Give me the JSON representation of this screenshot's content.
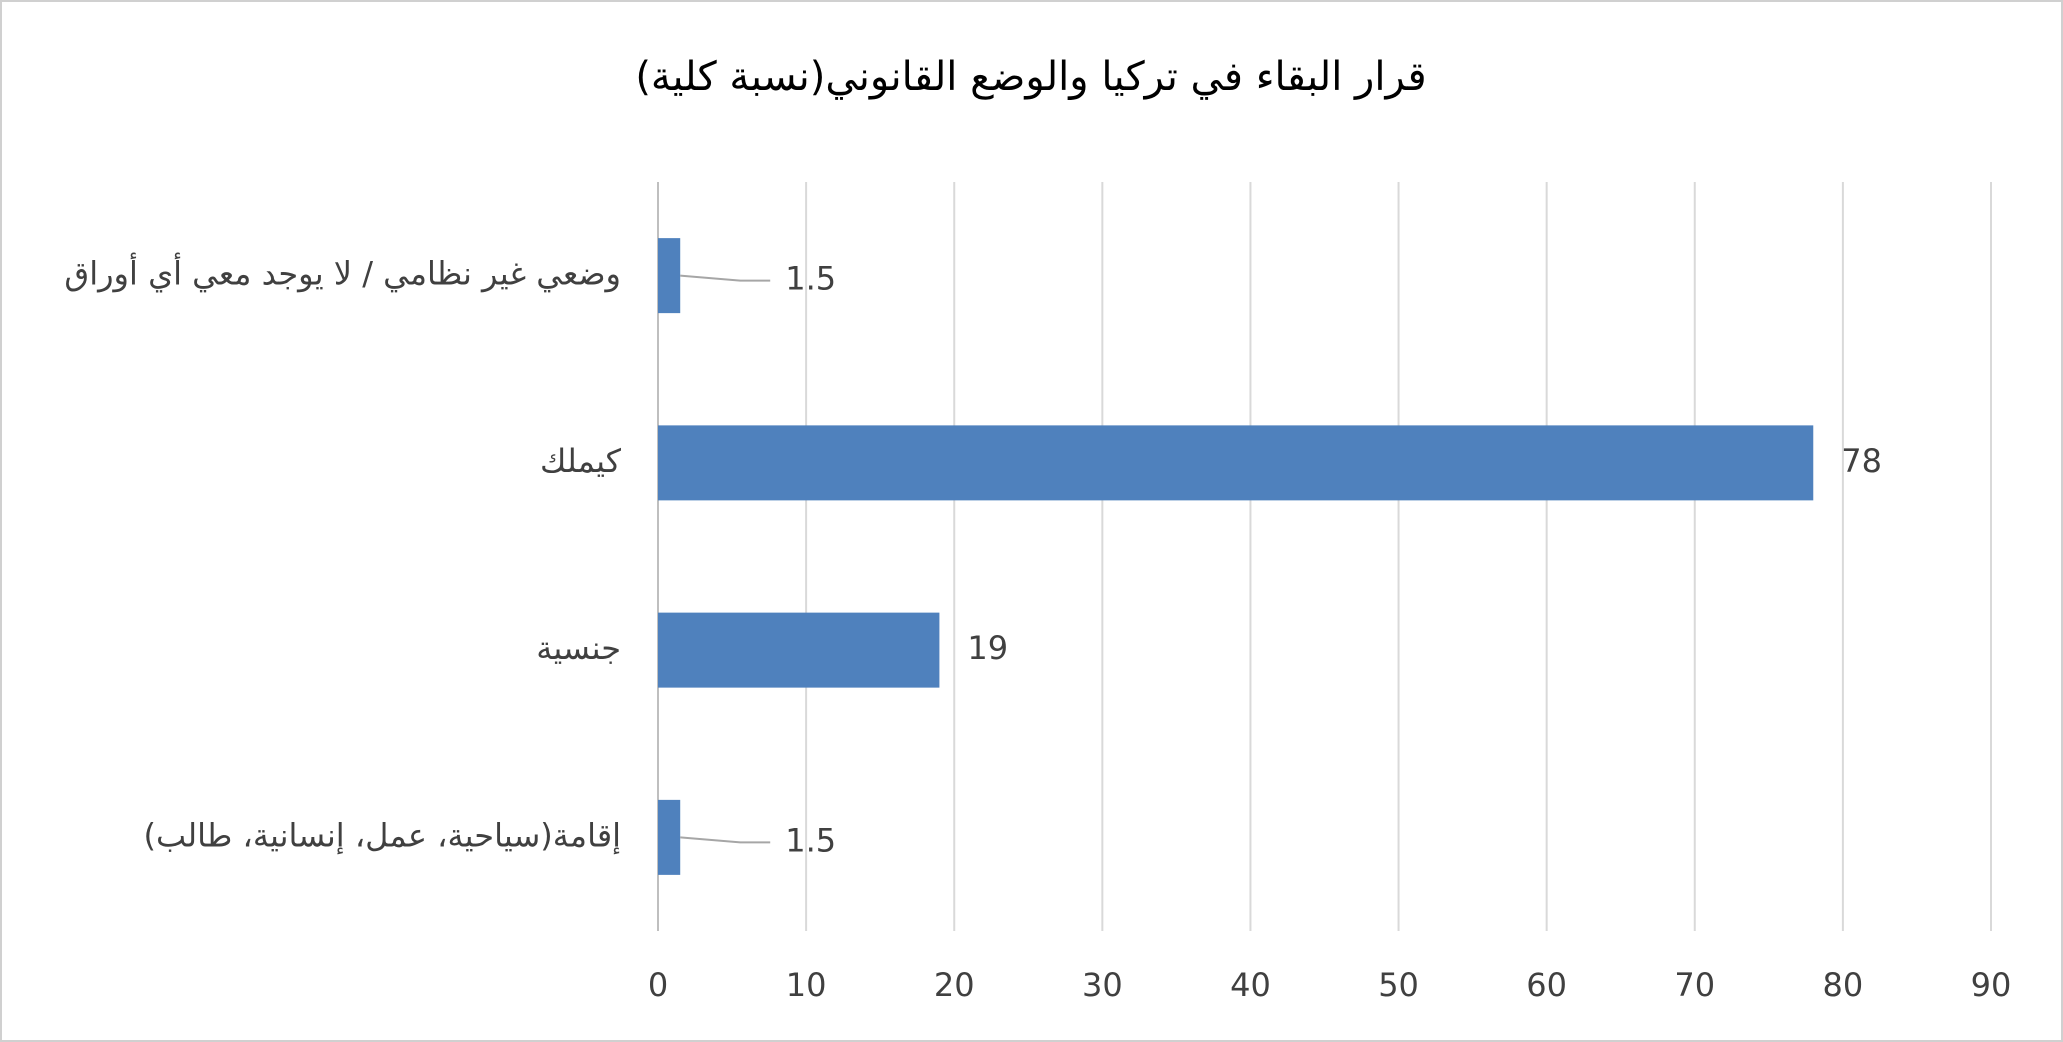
{
  "chart_data": {
    "type": "hbar",
    "title": "قرار البقاء في تركيا والوضع القانوني(نسبة كلية)",
    "categories": [
      "وضعي غير نظامي / لا يوجد معي أي أوراق",
      "كيملك",
      "جنسية",
      "إقامة(سياحية، عمل، إنسانية، طالب)"
    ],
    "values": [
      1.5,
      78,
      19,
      1.5
    ],
    "color": "#4f81bd",
    "xlim": [
      0,
      90
    ],
    "xticks": [
      0,
      10,
      20,
      30,
      40,
      50,
      60,
      70,
      80,
      90
    ],
    "grid": true
  }
}
